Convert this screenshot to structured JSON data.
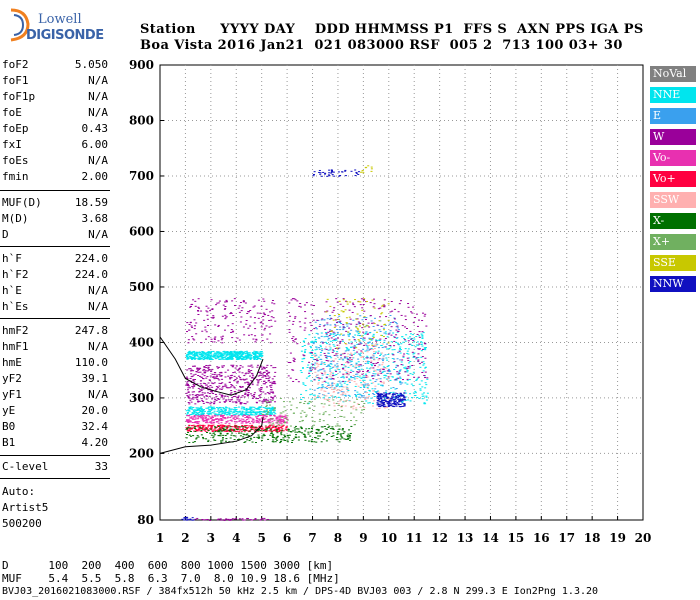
{
  "logo": {
    "line1": "Lowell",
    "line2": "DIGISONDE"
  },
  "header": {
    "row1": "Station     YYYY DAY    DDD HHMMSS P1  FFS S  AXN PPS IGA PS",
    "row2": "Boa Vista 2016 Jan21  021 083000 RSF  005 2  713 100 03+ 30"
  },
  "params": [
    {
      "label": "foF2",
      "value": "5.050"
    },
    {
      "label": "foF1",
      "value": "N/A"
    },
    {
      "label": "foF1p",
      "value": "N/A"
    },
    {
      "label": "foE",
      "value": "N/A"
    },
    {
      "label": "foEp",
      "value": "0.43"
    },
    {
      "label": "fxI",
      "value": "6.00"
    },
    {
      "label": "foEs",
      "value": "N/A"
    },
    {
      "label": "fmin",
      "value": "2.00"
    },
    {
      "label": "MUF(D)",
      "value": "18.59"
    },
    {
      "label": "M(D)",
      "value": "3.68"
    },
    {
      "label": "D",
      "value": "N/A"
    },
    {
      "label": "h`F",
      "value": "224.0"
    },
    {
      "label": "h`F2",
      "value": "224.0"
    },
    {
      "label": "h`E",
      "value": "N/A"
    },
    {
      "label": "h`Es",
      "value": "N/A"
    },
    {
      "label": "hmF2",
      "value": "247.8"
    },
    {
      "label": "hmF1",
      "value": "N/A"
    },
    {
      "label": "hmE",
      "value": "110.0"
    },
    {
      "label": "yF2",
      "value": "39.1"
    },
    {
      "label": "yF1",
      "value": "N/A"
    },
    {
      "label": "yE",
      "value": "20.0"
    },
    {
      "label": "B0",
      "value": "32.4"
    },
    {
      "label": "B1",
      "value": "4.20"
    },
    {
      "label": "C-level",
      "value": "33"
    }
  ],
  "auto": {
    "line1": "Auto:",
    "line2": "Artist5",
    "line3": "500200"
  },
  "legend": [
    {
      "label": "NoVal",
      "color": "#808080"
    },
    {
      "label": "NNE",
      "color": "#00e5ee"
    },
    {
      "label": "E",
      "color": "#3aa0ee"
    },
    {
      "label": "W",
      "color": "#9a009a"
    },
    {
      "label": "Vo-",
      "color": "#e830b0"
    },
    {
      "label": "Vo+",
      "color": "#ff0040"
    },
    {
      "label": "SSW",
      "color": "#ffb0b0"
    },
    {
      "label": "X-",
      "color": "#007000"
    },
    {
      "label": "X+",
      "color": "#70b060"
    },
    {
      "label": "SSE",
      "color": "#c8c800"
    },
    {
      "label": "NNW",
      "color": "#1010c0"
    }
  ],
  "footer": {
    "line1": "D      100  200  400  600  800 1000 1500 3000 [km]",
    "line2": "MUF    5.4  5.5  5.8  6.3  7.0  8.0 10.9 18.6 [MHz]",
    "line3": "BVJ03_2016021083000.RSF / 384fx512h 50 kHz 2.5 km / DPS-4D BVJ03 003 / 2.8 N 299.3 E Ion2Png 1.3.20"
  },
  "chart_data": {
    "type": "scatter",
    "xlim": [
      1,
      20
    ],
    "ylim": [
      80,
      900
    ],
    "x_ticks": [
      1,
      2,
      3,
      4,
      5,
      6,
      7,
      8,
      9,
      10,
      11,
      12,
      13,
      14,
      15,
      16,
      17,
      18,
      19,
      20
    ],
    "y_ticks": [
      80,
      200,
      300,
      400,
      500,
      600,
      700,
      800,
      900
    ],
    "grid": true,
    "clusters": [
      {
        "name": "NNE",
        "color": "#00e5ee",
        "x": [
          2.0,
          5.0
        ],
        "y": [
          370,
          385
        ],
        "n": 520
      },
      {
        "name": "NNE",
        "color": "#00e5ee",
        "x": [
          2.0,
          5.5
        ],
        "y": [
          270,
          285
        ],
        "n": 360
      },
      {
        "name": "NNE",
        "color": "#00e5ee",
        "x": [
          6.5,
          11.5
        ],
        "y": [
          290,
          420
        ],
        "n": 520
      },
      {
        "name": "E",
        "color": "#3aa0ee",
        "x": [
          7.0,
          10.5
        ],
        "y": [
          300,
          450
        ],
        "n": 300
      },
      {
        "name": "W",
        "color": "#9a009a",
        "x": [
          2.0,
          5.5
        ],
        "y": [
          290,
          360
        ],
        "n": 520
      },
      {
        "name": "W",
        "color": "#9a009a",
        "x": [
          2.0,
          5.5
        ],
        "y": [
          400,
          480
        ],
        "n": 180
      },
      {
        "name": "W",
        "color": "#9a009a",
        "x": [
          6.0,
          11.5
        ],
        "y": [
          330,
          480
        ],
        "n": 350
      },
      {
        "name": "Vo-",
        "color": "#e830b0",
        "x": [
          2.0,
          6.0
        ],
        "y": [
          255,
          270
        ],
        "n": 300
      },
      {
        "name": "Vo+",
        "color": "#ff0040",
        "x": [
          2.0,
          6.0
        ],
        "y": [
          240,
          252
        ],
        "n": 300
      },
      {
        "name": "SSW",
        "color": "#ffb0b0",
        "x": [
          7.0,
          10.0
        ],
        "y": [
          280,
          400
        ],
        "n": 200
      },
      {
        "name": "X-",
        "color": "#007000",
        "x": [
          2.0,
          8.5
        ],
        "y": [
          220,
          250
        ],
        "n": 320
      },
      {
        "name": "X+",
        "color": "#70b060",
        "x": [
          5.0,
          9.0
        ],
        "y": [
          250,
          300
        ],
        "n": 120
      },
      {
        "name": "SSE",
        "color": "#c8c800",
        "x": [
          7.5,
          10.0
        ],
        "y": [
          390,
          480
        ],
        "n": 70
      },
      {
        "name": "NNW",
        "color": "#1010c0",
        "x": [
          9.5,
          10.6
        ],
        "y": [
          285,
          310
        ],
        "n": 200
      },
      {
        "name": "NNW",
        "color": "#1010c0",
        "x": [
          7.0,
          8.8
        ],
        "y": [
          700,
          712
        ],
        "n": 40
      },
      {
        "name": "SSE",
        "color": "#c8c800",
        "x": [
          8.8,
          9.3
        ],
        "y": [
          705,
          720
        ],
        "n": 10
      },
      {
        "name": "NNW",
        "color": "#1010c0",
        "x": [
          1.8,
          2.3
        ],
        "y": [
          80,
          86
        ],
        "n": 18
      },
      {
        "name": "W",
        "color": "#9a009a",
        "x": [
          2.3,
          5.3
        ],
        "y": [
          80,
          84
        ],
        "n": 40
      }
    ],
    "profile_curve": {
      "x": [
        1.0,
        1.6,
        2.0,
        2.6,
        3.2,
        3.8,
        4.4,
        4.8,
        5.05
      ],
      "y": [
        410,
        370,
        335,
        320,
        312,
        305,
        315,
        340,
        370
      ]
    },
    "trace_curve": {
      "x": [
        1.0,
        2.0,
        3.0,
        4.0,
        4.6,
        5.0,
        5.05
      ],
      "y": [
        200,
        212,
        215,
        222,
        232,
        250,
        265
      ]
    }
  }
}
